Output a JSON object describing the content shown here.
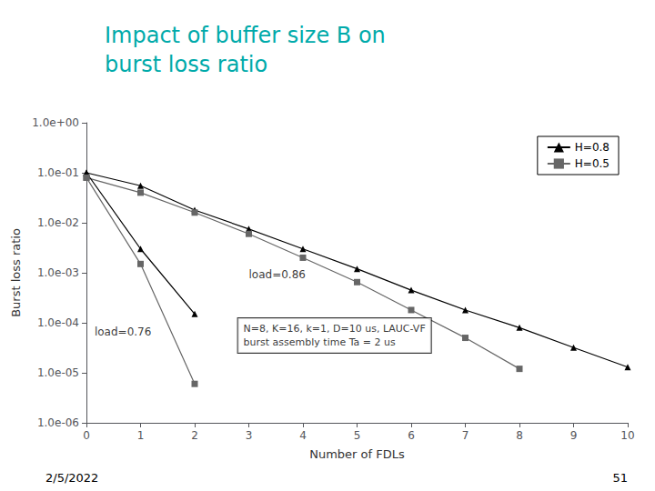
{
  "chart_data": {
    "type": "line",
    "title": "Impact of buffer size B on\nburst loss ratio",
    "x_label": "Number of FDLs",
    "y_label": "Burst loss ratio",
    "log": "y",
    "grid": false,
    "legend": "upper right",
    "xlim": [
      0,
      10
    ],
    "xticks": [
      0,
      1,
      2,
      3,
      4,
      5,
      6,
      7,
      8,
      9,
      10
    ],
    "ylim": [
      1e-06,
      1
    ],
    "yticks": [
      {
        "value": 1e-06,
        "label": "1.0e-06"
      },
      {
        "value": 1e-05,
        "label": "1.0e-05"
      },
      {
        "value": 0.0001,
        "label": "1.0e-04"
      },
      {
        "value": 0.001,
        "label": "1.0e-03"
      },
      {
        "value": 0.01,
        "label": "1.0e-02"
      },
      {
        "value": 0.1,
        "label": "1.0e-01"
      },
      {
        "value": 1,
        "label": "1.0e+00"
      }
    ],
    "series": [
      {
        "name": "H=0.8",
        "color": "#000000",
        "marker": "triangle",
        "line_style": "solid",
        "x": [
          0,
          1,
          2,
          3,
          4,
          5,
          6,
          7,
          8,
          9,
          10
        ],
        "values": [
          0.1,
          0.055,
          0.018,
          0.0075,
          0.003,
          0.0012,
          0.00045,
          0.00018,
          8e-05,
          3.2e-05,
          1.3e-05
        ]
      },
      {
        "name": "H=0.5",
        "color": "#666666",
        "marker": "square",
        "line_style": "solid",
        "x": [
          0,
          1,
          2,
          3,
          4,
          5,
          6,
          7,
          8
        ],
        "values": [
          0.08,
          0.04,
          0.016,
          0.006,
          0.002,
          0.00065,
          0.00018,
          5e-05,
          1.2e-05
        ]
      },
      {
        "color": "#000000",
        "marker": "triangle",
        "line_style": "solid",
        "x": [
          0,
          1,
          2
        ],
        "values": [
          0.1,
          0.003,
          0.00015
        ]
      },
      {
        "color": "#666666",
        "marker": "square",
        "line_style": "solid",
        "x": [
          0,
          1,
          2
        ],
        "values": [
          0.08,
          0.0015,
          6e-06
        ]
      }
    ],
    "annotations": [
      {
        "text": "load=0.86",
        "x": 3.0,
        "y": 0.0007
      },
      {
        "text": "load=0.76",
        "x": 0.15,
        "y": 5e-05
      },
      {
        "text": "N=8, K=16, k=1, D=10 us, LAUC-VF\nburst assembly time Ta = 2 us",
        "x": 2.8,
        "y": 2.5e-05
      },
      {
        "text": "2/5/2022"
      },
      {
        "text": "51"
      }
    ]
  }
}
